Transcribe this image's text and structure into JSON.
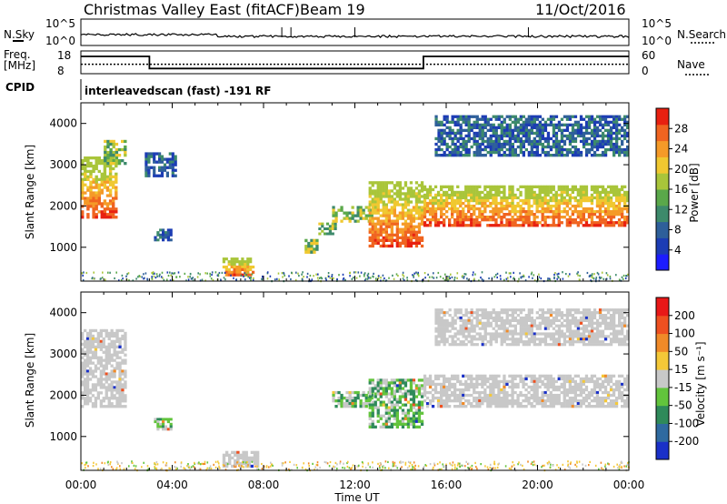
{
  "header": {
    "title": "Christmas Valley East (fitACF)",
    "beam": "Beam 19",
    "date": "11/Oct/2016"
  },
  "housekeeping": {
    "nsky_label": "N.Sky",
    "nsearch_label": "N.Search",
    "freq_label_1": "Freq.",
    "freq_label_2": "[MHz]",
    "nave_label": "Nave",
    "cpid_label": "CPID",
    "noise_ticks": [
      "10^5",
      "10^0"
    ],
    "freq_ticks": [
      "18",
      "8"
    ],
    "nave_ticks": [
      "60",
      "0"
    ],
    "cpid_text": "interleavedscan (fast) -191 RF",
    "freq_mhz_segments": [
      {
        "start_hour": 0,
        "end_hour": 3,
        "value": 15.6
      },
      {
        "start_hour": 3,
        "end_hour": 15,
        "value": 10.3
      },
      {
        "start_hour": 15,
        "end_hour": 24,
        "value": 15.6
      }
    ],
    "nave_value": 25
  },
  "chart_data": [
    {
      "type": "heatmap",
      "panel": "power",
      "ylabel": "Slant Range [km]",
      "yticks": [
        "1000",
        "2000",
        "3000",
        "4000"
      ],
      "ylim": [
        180,
        4500
      ],
      "xlim": [
        0,
        24
      ],
      "colorbar_label": "Power [dB]",
      "colorbar_ticks": [
        "28",
        "24",
        "20",
        "16",
        "12",
        "8",
        "4"
      ],
      "colors": [
        "#1c1cff",
        "#1c3cb4",
        "#2e5f9a",
        "#3d8a6b",
        "#5aa84a",
        "#a9c53a",
        "#f0c830",
        "#f59a28",
        "#f06420",
        "#e82010"
      ],
      "echo_regions": [
        {
          "t_start": 0.0,
          "t_end": 1.6,
          "r_start": 1700,
          "r_end": 3200,
          "level": "high"
        },
        {
          "t_start": 1.0,
          "t_end": 2.0,
          "r_start": 3000,
          "r_end": 3600,
          "level": "mid"
        },
        {
          "t_start": 2.8,
          "t_end": 4.2,
          "r_start": 2700,
          "r_end": 3300,
          "level": "low"
        },
        {
          "t_start": 3.2,
          "t_end": 4.0,
          "r_start": 1150,
          "r_end": 1450,
          "level": "low"
        },
        {
          "t_start": 6.2,
          "t_end": 7.6,
          "r_start": 300,
          "r_end": 750,
          "level": "high"
        },
        {
          "t_start": 9.8,
          "t_end": 10.4,
          "r_start": 850,
          "r_end": 1200,
          "level": "mid"
        },
        {
          "t_start": 10.4,
          "t_end": 11.2,
          "r_start": 1300,
          "r_end": 1600,
          "level": "mid"
        },
        {
          "t_start": 11.0,
          "t_end": 12.8,
          "r_start": 1600,
          "r_end": 2000,
          "level": "mid"
        },
        {
          "t_start": 12.6,
          "t_end": 15.0,
          "r_start": 1000,
          "r_end": 2600,
          "level": "high"
        },
        {
          "t_start": 15.0,
          "t_end": 24.0,
          "r_start": 1500,
          "r_end": 2500,
          "level": "high"
        },
        {
          "t_start": 15.5,
          "t_end": 24.0,
          "r_start": 3200,
          "r_end": 4200,
          "level": "low"
        }
      ]
    },
    {
      "type": "heatmap",
      "panel": "velocity",
      "xlabel": "Time UT",
      "ylabel": "Slant Range [km]",
      "xticks": [
        "00:00",
        "04:00",
        "08:00",
        "12:00",
        "16:00",
        "20:00",
        "00:00"
      ],
      "yticks": [
        "1000",
        "2000",
        "3000",
        "4000"
      ],
      "ylim": [
        180,
        4500
      ],
      "xlim": [
        0,
        24
      ],
      "colorbar_label": "Velocity [m s⁻¹]",
      "colorbar_ticks": [
        "200",
        "100",
        "50",
        "15",
        "-15",
        "-50",
        "-100",
        "-200"
      ],
      "colors": [
        "#1a30c8",
        "#2f6aa0",
        "#2f8a5a",
        "#62c43c",
        "#c8c8c8",
        "#f4c838",
        "#f08a28",
        "#ee5020",
        "#e81818"
      ],
      "echo_regions": [
        {
          "t_start": 0.0,
          "t_end": 2.0,
          "r_start": 1700,
          "r_end": 3600,
          "level": "ground"
        },
        {
          "t_start": 3.2,
          "t_end": 4.0,
          "r_start": 1150,
          "r_end": 1450,
          "level": "positive"
        },
        {
          "t_start": 6.2,
          "t_end": 7.8,
          "r_start": 250,
          "r_end": 650,
          "level": "ground"
        },
        {
          "t_start": 11.0,
          "t_end": 12.8,
          "r_start": 1700,
          "r_end": 2100,
          "level": "positive"
        },
        {
          "t_start": 12.6,
          "t_end": 15.0,
          "r_start": 1200,
          "r_end": 2400,
          "level": "positive"
        },
        {
          "t_start": 15.0,
          "t_end": 24.0,
          "r_start": 1700,
          "r_end": 2500,
          "level": "ground"
        },
        {
          "t_start": 15.5,
          "t_end": 24.0,
          "r_start": 3200,
          "r_end": 4100,
          "level": "ground"
        }
      ]
    }
  ]
}
